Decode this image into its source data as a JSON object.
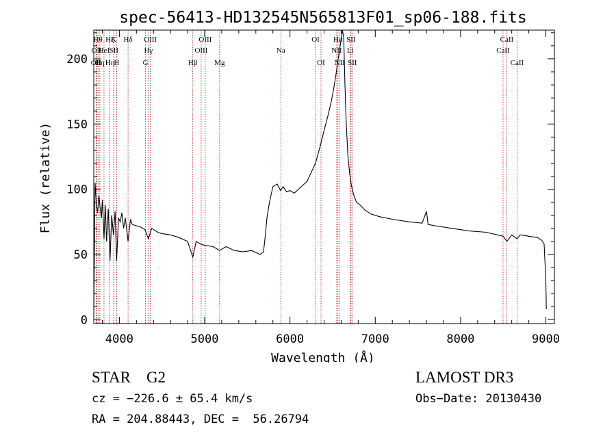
{
  "chart_data": {
    "type": "line",
    "title": "spec-56413-HD132545N565813F01_sp06-188.fits",
    "xlabel": "Wavelength (Å)",
    "ylabel": "Flux (relative)",
    "xlim": [
      3700,
      9100
    ],
    "ylim": [
      -3,
      222
    ],
    "xticks": [
      4000,
      5000,
      6000,
      7000,
      8000,
      9000
    ],
    "yticks": [
      0,
      50,
      100,
      150,
      200
    ],
    "line_color": "#000000",
    "marker_color": "#b00000",
    "grid": false,
    "series": [
      {
        "x": [
          3700,
          3715,
          3730,
          3745,
          3760,
          3775,
          3790,
          3800,
          3820,
          3835,
          3850,
          3870,
          3890,
          3910,
          3930,
          3950,
          3968,
          3990,
          4010,
          4030,
          4050,
          4070,
          4102,
          4130,
          4150,
          4200,
          4250,
          4300,
          4340,
          4380,
          4450,
          4500,
          4600,
          4700,
          4800,
          4861,
          4900,
          4950,
          5000,
          5100,
          5175,
          5250,
          5350,
          5450,
          5550,
          5650,
          5690,
          5710,
          5730,
          5760,
          5800,
          5850,
          5890,
          5920,
          5960,
          6000,
          6050,
          6100,
          6150,
          6200,
          6250,
          6300,
          6350,
          6400,
          6440,
          6480,
          6510,
          6540,
          6560,
          6580,
          6600,
          6615,
          6630,
          6645,
          6660,
          6680,
          6700,
          6720,
          6750,
          6780,
          6820,
          6880,
          6950,
          7050,
          7200,
          7400,
          7550,
          7600,
          7620,
          7700,
          7900,
          8100,
          8300,
          8500,
          8542,
          8600,
          8662,
          8700,
          8800,
          8900,
          8950,
          8980,
          9000,
          9005
        ],
        "y": [
          2,
          105,
          90,
          82,
          95,
          86,
          78,
          92,
          62,
          88,
          60,
          85,
          45,
          80,
          65,
          83,
          45,
          78,
          75,
          82,
          70,
          78,
          60,
          77,
          73,
          72,
          71,
          69,
          62,
          70,
          67,
          66,
          65,
          63,
          60,
          48,
          60,
          58,
          57,
          56,
          53,
          56,
          53,
          52,
          53,
          50,
          52,
          64,
          78,
          90,
          102,
          104,
          99,
          102,
          98,
          99,
          97,
          100,
          103,
          106,
          113,
          120,
          132,
          145,
          155,
          166,
          176,
          188,
          198,
          206,
          215,
          222,
          216,
          180,
          150,
          125,
          112,
          103,
          95,
          90,
          88,
          84,
          81,
          79,
          77,
          75,
          74,
          83,
          73,
          72,
          70,
          68,
          67,
          64,
          60,
          65,
          62,
          65,
          64,
          63,
          61,
          58,
          30,
          8
        ]
      }
    ],
    "lines": [
      {
        "x": 3727,
        "label": "OII",
        "row": 3
      },
      {
        "x": 3734,
        "label": "OII",
        "row": 2
      },
      {
        "x": 3750,
        "label": "Hθ",
        "row": 1
      },
      {
        "x": 3771,
        "label": "Hη",
        "row": 3
      },
      {
        "x": 3820,
        "label": "HeI",
        "row": 2
      },
      {
        "x": 3889,
        "label": "Hζ",
        "row": 1
      },
      {
        "x": 3889,
        "label": "Hη",
        "row": 3
      },
      {
        "x": 3934,
        "label": "K",
        "row": 1
      },
      {
        "x": 3935,
        "label": "SII",
        "row": 2
      },
      {
        "x": 3968,
        "label": "H",
        "row": 3
      },
      {
        "x": 4102,
        "label": "Hδ",
        "row": 1
      },
      {
        "x": 4307,
        "label": "G",
        "row": 3
      },
      {
        "x": 4341,
        "label": "Hγ",
        "row": 2
      },
      {
        "x": 4363,
        "label": "OIII",
        "row": 1
      },
      {
        "x": 4861,
        "label": "Hβ",
        "row": 3
      },
      {
        "x": 4959,
        "label": "OIII",
        "row": 2
      },
      {
        "x": 5007,
        "label": "OIII",
        "row": 1
      },
      {
        "x": 5175,
        "label": "Mg",
        "row": 3
      },
      {
        "x": 5893,
        "label": "Na",
        "row": 2
      },
      {
        "x": 6300,
        "label": "OI",
        "row": 1
      },
      {
        "x": 6364,
        "label": "OI",
        "row": 3
      },
      {
        "x": 6548,
        "label": "NII",
        "row": 2
      },
      {
        "x": 6563,
        "label": "Hα",
        "row": 1
      },
      {
        "x": 6583,
        "label": "NII",
        "row": 3
      },
      {
        "x": 6707,
        "label": "Li",
        "row": 2
      },
      {
        "x": 6716,
        "label": "SII",
        "row": 1
      },
      {
        "x": 6731,
        "label": "SII",
        "row": 3
      },
      {
        "x": 8498,
        "label": "CaII",
        "row": 2
      },
      {
        "x": 8542,
        "label": "CaII",
        "row": 1
      },
      {
        "x": 8662,
        "label": "CaII",
        "row": 3
      }
    ]
  },
  "info": {
    "class": "STAR    G2",
    "survey": "LAMOST DR3",
    "cz": "cz = −226.6 ± 65.4 km/s",
    "obs_date": "Obs−Date: 20130430",
    "radec": "RA = 204.88443, DEC =  56.26794"
  }
}
